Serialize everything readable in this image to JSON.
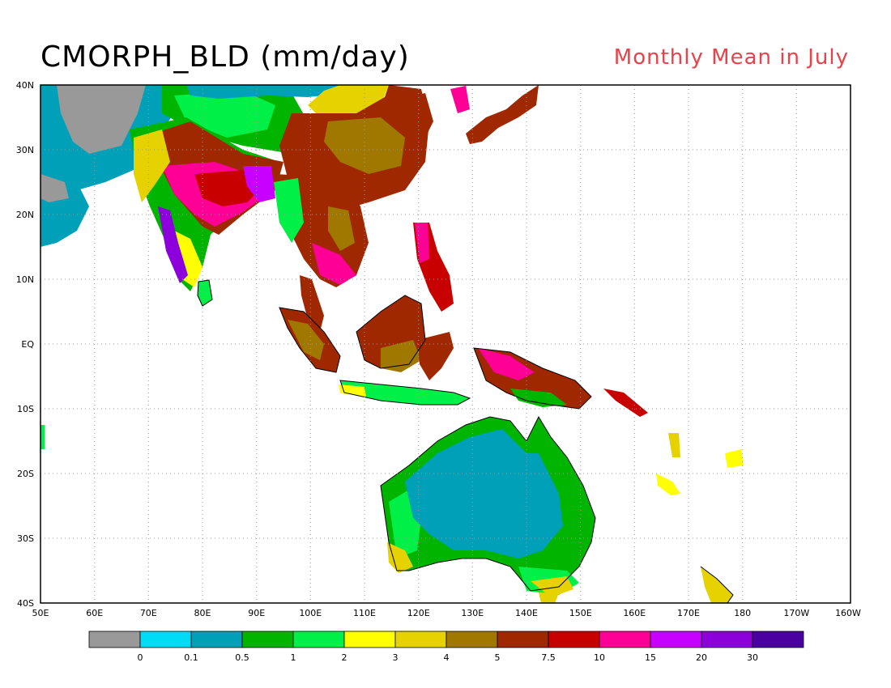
{
  "title": "CMORPH_BLD (mm/day)",
  "subtitle": "Monthly Mean in July",
  "map": {
    "lon_range": [
      50,
      200
    ],
    "lat_range": [
      -40,
      40
    ],
    "lat_labels": [
      "40N",
      "30N",
      "20N",
      "10N",
      "EQ",
      "10S",
      "20S",
      "30S",
      "40S"
    ],
    "lon_labels": [
      "50E",
      "60E",
      "70E",
      "80E",
      "90E",
      "100E",
      "110E",
      "120E",
      "130E",
      "140E",
      "150E",
      "160E",
      "170E",
      "180",
      "170W",
      "160W"
    ],
    "grid": "dotted",
    "ocean_color": "#ffffff"
  },
  "colorbar": {
    "colors": [
      "#999999",
      "#00dcf5",
      "#00a0b8",
      "#00b400",
      "#00f048",
      "#ffff00",
      "#e6d200",
      "#a07800",
      "#a02800",
      "#c80000",
      "#ff0096",
      "#c800ff",
      "#8c00dc",
      "#4b00a0"
    ],
    "labels": [
      "0",
      "0.1",
      "0.5",
      "1",
      "2",
      "3",
      "4",
      "5",
      "7.5",
      "10",
      "15",
      "20",
      "30"
    ]
  }
}
